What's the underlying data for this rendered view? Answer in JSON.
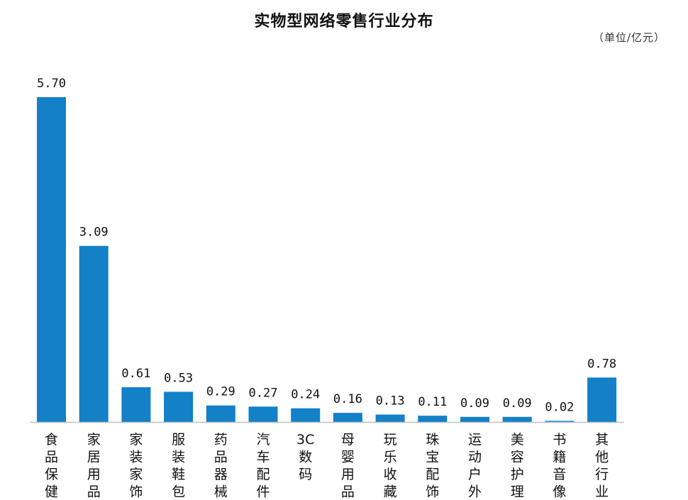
{
  "chart_data": {
    "type": "bar",
    "title": "实物型网络零售行业分布",
    "unit_label": "（单位/亿元）",
    "categories": [
      "食品保健",
      "家居用品",
      "家装家饰",
      "服装鞋包",
      "药品器械",
      "汽车配件",
      "3C数码",
      "母婴用品",
      "玩乐收藏",
      "珠宝配饰",
      "运动户外",
      "美容护理",
      "书籍音像",
      "其他行业"
    ],
    "values": [
      5.7,
      3.09,
      0.61,
      0.53,
      0.29,
      0.27,
      0.24,
      0.16,
      0.13,
      0.11,
      0.09,
      0.09,
      0.02,
      0.78
    ],
    "value_labels": [
      "5.70",
      "3.09",
      "0.61",
      "0.53",
      "0.29",
      "0.27",
      "0.24",
      "0.16",
      "0.13",
      "0.11",
      "0.09",
      "0.09",
      "0.02",
      "0.78"
    ],
    "xlabel": "",
    "ylabel": "",
    "grid": false,
    "bar_color": "#1380C8"
  }
}
